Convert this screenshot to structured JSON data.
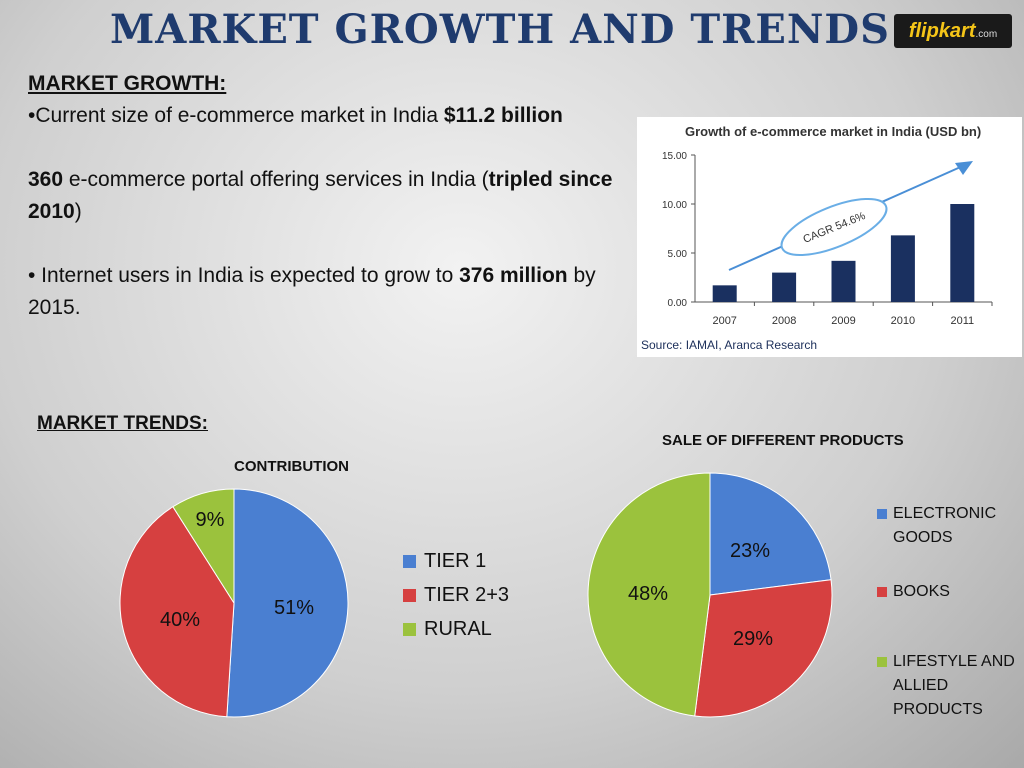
{
  "title": "MARKET GROWTH AND TRENDS",
  "logo": {
    "brand": "flipkart",
    "suffix": ".com"
  },
  "growth": {
    "heading": "MARKET GROWTH:",
    "b1_pre": "•Current size of e-commerce market in India ",
    "b1_bold": "$11.2 billion",
    "b2_bold1": "360",
    "b2_mid": " e-commerce portal offering services in India (",
    "b2_bold2": "tripled since 2010",
    "b2_end": ")",
    "b3_pre": "• Internet users in India is expected to grow to ",
    "b3_bold": "376 million",
    "b3_end": " by 2015."
  },
  "trends_heading": "MARKET TRENDS:",
  "chart_data": [
    {
      "type": "bar",
      "title": "Growth of e-commerce market in India (USD bn)",
      "categories": [
        "2007",
        "2008",
        "2009",
        "2010",
        "2011"
      ],
      "values": [
        1.7,
        3.0,
        4.2,
        6.8,
        10.0
      ],
      "ylim": [
        0,
        15
      ],
      "yticks": [
        "0.00",
        "5.00",
        "10.00",
        "15.00"
      ],
      "annotation": "CAGR 54.6%",
      "source": "Source: IAMAI, Aranca Research",
      "color": "#1a3060"
    },
    {
      "type": "pie",
      "title": "CONTRIBUTION",
      "labels": [
        "TIER 1",
        "TIER 2+3",
        "RURAL"
      ],
      "values": [
        51,
        40,
        9
      ],
      "value_labels": [
        "51%",
        "40%",
        "9%"
      ],
      "colors": [
        "#4a7fd1",
        "#d64040",
        "#9bc23d"
      ]
    },
    {
      "type": "pie",
      "title": "SALE OF DIFFERENT PRODUCTS",
      "labels": [
        "ELECTRONIC GOODS",
        "BOOKS",
        "LIFESTYLE AND ALLIED PRODUCTS"
      ],
      "values": [
        23,
        29,
        48
      ],
      "value_labels": [
        "23%",
        "29%",
        "48%"
      ],
      "colors": [
        "#4a7fd1",
        "#d64040",
        "#9bc23d"
      ]
    }
  ]
}
